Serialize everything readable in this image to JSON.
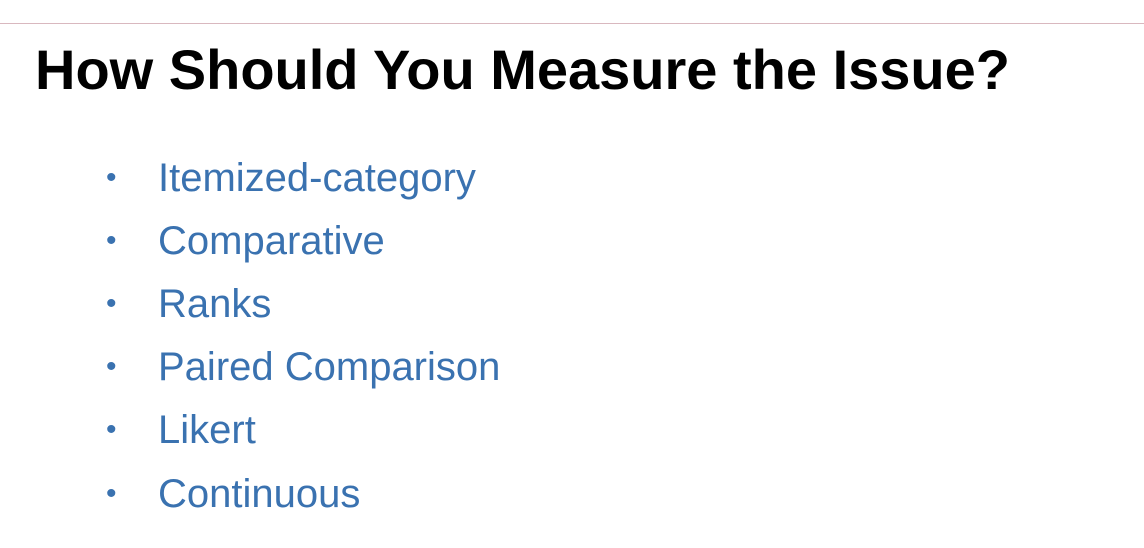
{
  "slide": {
    "title": "How Should You Measure the Issue?",
    "bullet_glyph": "•",
    "bullets": [
      "Itemized-category",
      "Comparative",
      "Ranks",
      "Paired Comparison",
      "Likert",
      "Continuous"
    ]
  },
  "colors": {
    "title": "#000000",
    "bullets": "#3a72b0",
    "top_rule": "#d9b8bf",
    "background": "#ffffff"
  }
}
